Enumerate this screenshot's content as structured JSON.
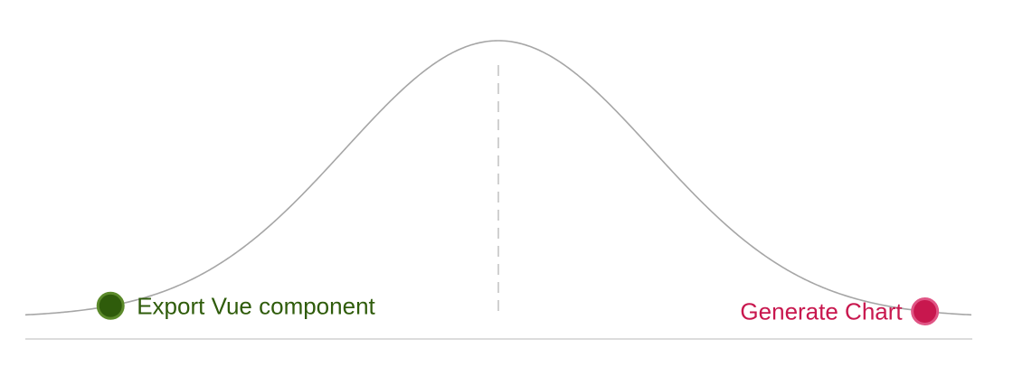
{
  "hill_chart": {
    "scopes": [
      {
        "label": "Export Vue component",
        "progress": 0.09,
        "color": "#2f5c0b",
        "stroke": "#5b8a2a",
        "label_side": "right"
      },
      {
        "label": "Generate Chart",
        "progress": 0.95,
        "color": "#c8174e",
        "stroke": "#e05585",
        "label_side": "left"
      }
    ]
  }
}
